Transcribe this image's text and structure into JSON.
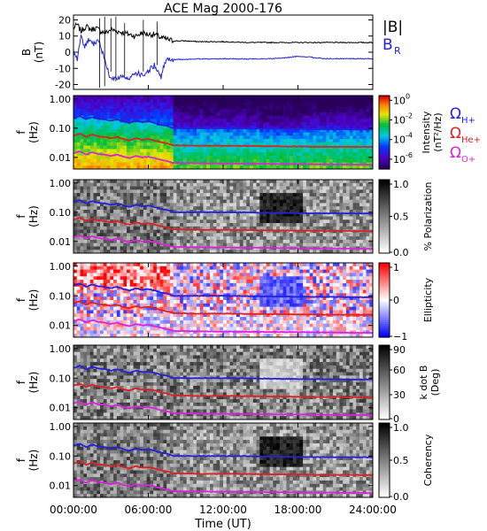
{
  "chart_data": {
    "title": "ACE Mag 2000-176",
    "xlabel": "Time (UT)",
    "x_range_hours": [
      0,
      24
    ],
    "x_ticks": [
      "00:00:00",
      "06:00:00",
      "12:00:00",
      "18:00:00",
      "24:00:00"
    ],
    "top_panel": {
      "type": "line",
      "ylabel_line1": "B",
      "ylabel_line2": "(nT)",
      "ylim": [
        -23,
        23
      ],
      "y_ticks": [
        "20",
        "10",
        "0",
        "-10",
        "-20"
      ],
      "y_tick_values": [
        20,
        10,
        0,
        -10,
        -20
      ],
      "legend": [
        {
          "label": "|B|",
          "color": "#000000"
        },
        {
          "label": "B",
          "sub": "R",
          "color": "#2222dd"
        }
      ],
      "series": [
        {
          "legend_index": 0,
          "color": "#000000",
          "x": [
            0,
            0.3,
            0.6,
            1.0,
            1.4,
            1.8,
            2.2,
            2.6,
            3.0,
            3.5,
            4.0,
            4.5,
            5.0,
            5.5,
            6.0,
            6.5,
            7.0,
            7.5,
            8.0,
            9,
            10,
            12,
            14,
            16,
            18,
            20,
            22,
            24
          ],
          "y": [
            15,
            17,
            13,
            16,
            14,
            15,
            13,
            12,
            14,
            13,
            12,
            11,
            10,
            12,
            11,
            11,
            9,
            8,
            7,
            7,
            6.5,
            6.5,
            6,
            6,
            6,
            6,
            6,
            6
          ]
        },
        {
          "legend_index": 1,
          "color": "#2222dd",
          "x": [
            0,
            0.3,
            0.6,
            0.9,
            1.2,
            1.6,
            2.0,
            2.5,
            3.0,
            3.5,
            4.0,
            4.5,
            5.0,
            5.5,
            6.0,
            6.5,
            7.0,
            7.3,
            7.5,
            8.0,
            9,
            10,
            12,
            14,
            16,
            17,
            18,
            19,
            20,
            22,
            24
          ],
          "y": [
            0,
            -5,
            10,
            4,
            8,
            5,
            7,
            -4,
            -17,
            -16,
            -15,
            -17,
            -13,
            -14,
            -12,
            -8,
            -16,
            -7,
            -5,
            -4.5,
            -4.5,
            -4.2,
            -4,
            -4.2,
            -4,
            -3.5,
            -2.5,
            -3,
            -4,
            -4,
            -4
          ]
        }
      ]
    },
    "panel_common": {
      "ylabel_line1": "f",
      "ylabel_line2": "(Hz)",
      "y_scale": "log",
      "ylim": [
        0.004,
        1.3
      ],
      "y_ticks": [
        "1.00",
        "0.10",
        "0.01"
      ],
      "y_tick_values": [
        1.0,
        0.1,
        0.01
      ],
      "gyrofrequency_lines": [
        {
          "label": "Ω",
          "sub": "H+",
          "color": "#2222dd",
          "x": [
            0,
            0.5,
            1.0,
            1.5,
            2.0,
            2.5,
            3.0,
            3.5,
            4.0,
            4.5,
            5.0,
            5.5,
            6.0,
            6.5,
            7.0,
            7.5,
            8.0,
            10,
            12,
            14,
            16,
            18,
            20,
            22,
            24
          ],
          "y": [
            0.22,
            0.26,
            0.2,
            0.24,
            0.21,
            0.2,
            0.18,
            0.2,
            0.17,
            0.15,
            0.18,
            0.16,
            0.17,
            0.15,
            0.13,
            0.12,
            0.1,
            0.1,
            0.1,
            0.098,
            0.095,
            0.093,
            0.092,
            0.091,
            0.09
          ]
        },
        {
          "label": "Ω",
          "sub": "He+",
          "color": "#dd2222",
          "x": [
            0,
            0.5,
            1.0,
            1.5,
            2.0,
            2.5,
            3.0,
            3.5,
            4.0,
            4.5,
            5.0,
            5.5,
            6.0,
            6.5,
            7.0,
            7.5,
            8.0,
            10,
            12,
            14,
            16,
            18,
            20,
            22,
            24
          ],
          "y": [
            0.055,
            0.065,
            0.05,
            0.06,
            0.052,
            0.05,
            0.045,
            0.05,
            0.042,
            0.038,
            0.045,
            0.04,
            0.042,
            0.038,
            0.033,
            0.03,
            0.026,
            0.025,
            0.025,
            0.0245,
            0.024,
            0.0235,
            0.023,
            0.023,
            0.0225
          ]
        },
        {
          "label": "Ω",
          "sub": "O+",
          "color": "#dd22dd",
          "x": [
            0,
            0.5,
            1.0,
            1.5,
            2.0,
            2.5,
            3.0,
            3.5,
            4.0,
            4.5,
            5.0,
            5.5,
            6.0,
            6.5,
            7.0,
            7.5,
            8.0,
            10,
            12,
            14,
            16,
            18,
            20,
            22,
            24
          ],
          "y": [
            0.014,
            0.016,
            0.0125,
            0.015,
            0.013,
            0.0125,
            0.0112,
            0.0125,
            0.0105,
            0.0095,
            0.0112,
            0.01,
            0.0105,
            0.0095,
            0.0083,
            0.0075,
            0.0065,
            0.0063,
            0.0062,
            0.0061,
            0.006,
            0.0059,
            0.0058,
            0.0057,
            0.0056
          ]
        }
      ]
    },
    "panels": [
      {
        "type": "heatmap",
        "colorbar": "rainbow",
        "colorbar_label_line1": "Intensity",
        "colorbar_label_line2": "(nT²/Hz)",
        "colorbar_scale": "log",
        "colorbar_range": [
          1e-07,
          3
        ],
        "colorbar_ticks": [
          {
            "base": "10",
            "exp": "0"
          },
          {
            "base": "10",
            "exp": "-2"
          },
          {
            "base": "10",
            "exp": "-4"
          },
          {
            "base": "10",
            "exp": "-6"
          }
        ],
        "colorbar_tick_values": [
          1,
          0.01,
          0.0001,
          1e-06
        ]
      },
      {
        "type": "heatmap",
        "colorbar": "gray",
        "colorbar_label_line1": "% Polarization",
        "colorbar_label_line2": "",
        "colorbar_range": [
          0,
          1
        ],
        "colorbar_ticks": [
          "1.0",
          "0.5",
          "0.0"
        ],
        "colorbar_tick_values": [
          1,
          0.5,
          0
        ]
      },
      {
        "type": "heatmap",
        "colorbar": "bwr",
        "colorbar_label_line1": "Ellipticity",
        "colorbar_label_line2": "",
        "colorbar_range": [
          -1,
          1
        ],
        "colorbar_ticks": [
          "1",
          "0",
          "−1"
        ],
        "colorbar_tick_values": [
          1,
          0,
          -1
        ]
      },
      {
        "type": "heatmap",
        "colorbar": "gray",
        "colorbar_label_line1": "k dot B",
        "colorbar_label_line2": "(Deg)",
        "colorbar_range": [
          0,
          90
        ],
        "colorbar_ticks": [
          "90",
          "60",
          "30",
          "0"
        ],
        "colorbar_tick_values": [
          90,
          60,
          30,
          0
        ]
      },
      {
        "type": "heatmap",
        "colorbar": "gray",
        "colorbar_label_line1": "Coherency",
        "colorbar_label_line2": "",
        "colorbar_range": [
          0,
          1
        ],
        "colorbar_ticks": [
          "1.0",
          "0.5",
          "0.0"
        ],
        "colorbar_tick_values": [
          1,
          0.5,
          0
        ]
      }
    ]
  }
}
